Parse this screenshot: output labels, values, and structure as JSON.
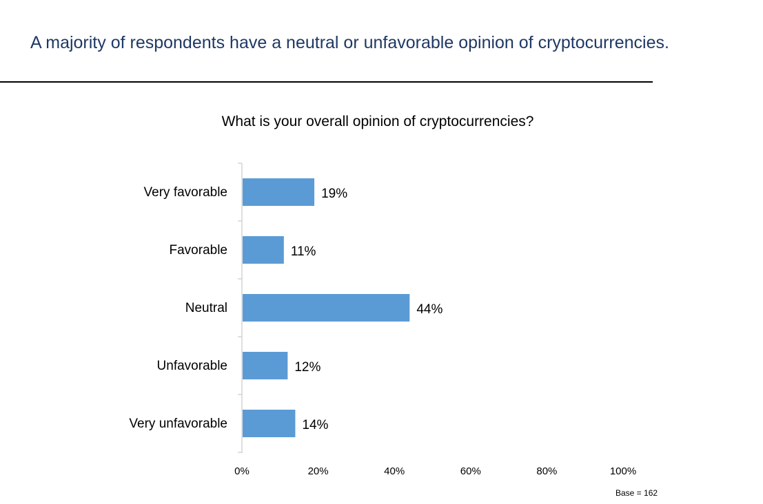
{
  "slide": {
    "title": "A majority of respondents have a neutral or unfavorable opinion of cryptocurrencies.",
    "footnote": "Base = 162"
  },
  "colors": {
    "bar": "#5b9bd5",
    "title": "#1f3864",
    "axis": "#bfbfbf",
    "text": "#000000"
  },
  "chart_data": {
    "type": "bar",
    "orientation": "horizontal",
    "title": "What is your overall opinion of cryptocurrencies?",
    "categories": [
      "Very favorable",
      "Favorable",
      "Neutral",
      "Unfavorable",
      "Very unfavorable"
    ],
    "values": [
      19,
      11,
      44,
      12,
      14
    ],
    "data_labels": [
      "19%",
      "11%",
      "44%",
      "12%",
      "14%"
    ],
    "xlim": [
      0,
      100
    ],
    "xticks": [
      0,
      20,
      40,
      60,
      80,
      100
    ],
    "xtick_labels": [
      "0%",
      "20%",
      "40%",
      "60%",
      "80%",
      "100%"
    ],
    "grid": false,
    "legend": "none"
  }
}
